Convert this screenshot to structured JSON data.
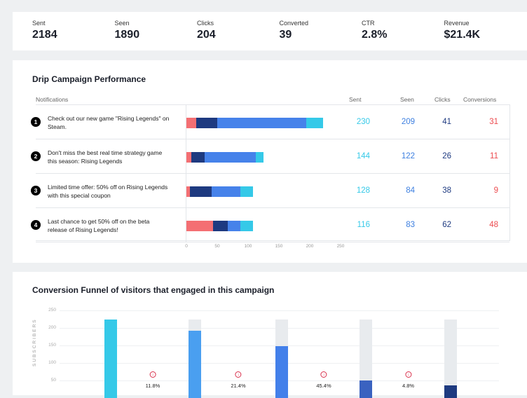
{
  "stats": [
    {
      "label": "Sent",
      "value": "2184"
    },
    {
      "label": "Seen",
      "value": "1890"
    },
    {
      "label": "Clicks",
      "value": "204"
    },
    {
      "label": "Converted",
      "value": "39"
    },
    {
      "label": "CTR",
      "value": "2.8%"
    },
    {
      "label": "Revenue",
      "value": "$21.4K"
    }
  ],
  "drip": {
    "title": "Drip Campaign Performance",
    "notifications_label": "Notifications",
    "columns": [
      "Sent",
      "Seen",
      "Clicks",
      "Conversions"
    ],
    "colors": {
      "conversions": "#f46f73",
      "clicks": "#1e3a80",
      "seen": "#4682ea",
      "sent": "#35c9e8"
    },
    "rows": [
      {
        "num": "1",
        "text": "Check out our new game \"Rising Legends\" on Steam.",
        "sent": "230",
        "seen": "209",
        "clicks": "41",
        "conversions": "31",
        "segments": [
          16,
          34,
          144,
          28
        ]
      },
      {
        "num": "2",
        "text": "Don't miss the best real time strategy game this season: Rising Legends",
        "sent": "144",
        "seen": "122",
        "clicks": "26",
        "conversions": "11",
        "segments": [
          8,
          22,
          83,
          12
        ]
      },
      {
        "num": "3",
        "text": "Limited time offer: 50% off on Rising Legends with this special coupon",
        "sent": "128",
        "seen": "84",
        "clicks": "38",
        "conversions": "9",
        "segments": [
          6,
          35,
          46,
          21
        ]
      },
      {
        "num": "4",
        "text": "Last chance to get 50% off on the beta release of Rising Legends!",
        "sent": "116",
        "seen": "83",
        "clicks": "62",
        "conversions": "48",
        "segments": [
          43,
          24,
          20,
          21
        ]
      }
    ],
    "axis_ticks": [
      "0",
      "50",
      "100",
      "150",
      "200",
      "250"
    ]
  },
  "funnel": {
    "title": "Conversion Funnel of visitors that engaged in this campaign",
    "ylabel": "SUBSCRIBERS",
    "yticks": [
      "250",
      "200",
      "150",
      "100",
      "50"
    ],
    "chart_data": {
      "type": "bar",
      "ylabel": "SUBSCRIBERS",
      "ylim": [
        0,
        250
      ],
      "max": 225,
      "values": [
        225,
        192,
        148,
        50,
        37
      ],
      "colors": [
        "#35c9e8",
        "#4a9ff0",
        "#4380ea",
        "#3a62c0",
        "#1e3a80"
      ],
      "drops": [
        "11.8%",
        "21.4%",
        "45.4%",
        "4.8%"
      ]
    }
  }
}
